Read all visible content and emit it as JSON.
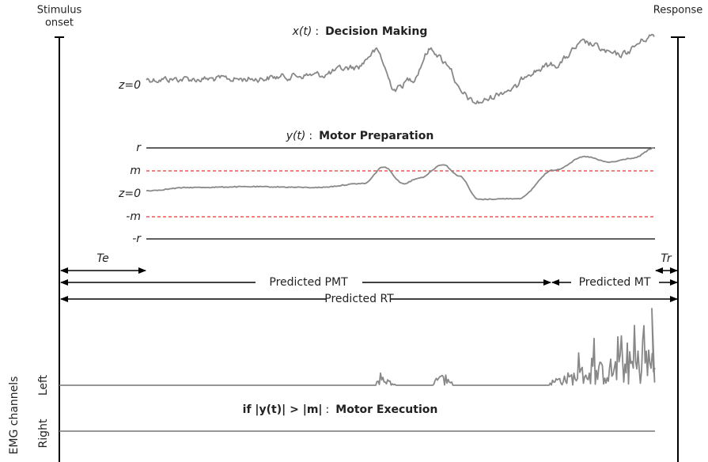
{
  "header": {
    "stimulus": [
      "Stimulus",
      "onset"
    ],
    "response": "Response"
  },
  "panels": {
    "decision": {
      "var": "x(t)",
      "sep": ":",
      "title": "Decision Making",
      "baseline": "z=0"
    },
    "motor": {
      "var": "y(t)",
      "sep": ":",
      "title": "Motor Preparation",
      "levels": [
        "r",
        "m",
        "z=0",
        "-m",
        "-r"
      ]
    }
  },
  "timing": {
    "te": "Te",
    "tr": "Tr",
    "pmt": "Predicted PMT",
    "mt": "Predicted MT",
    "rt": "Predicted RT"
  },
  "emg": {
    "axis": "EMG channels",
    "left": "Left",
    "right": "Right",
    "condition": "if |y(t)| > |m|",
    "sep": ":",
    "title": "Motor Execution"
  }
}
